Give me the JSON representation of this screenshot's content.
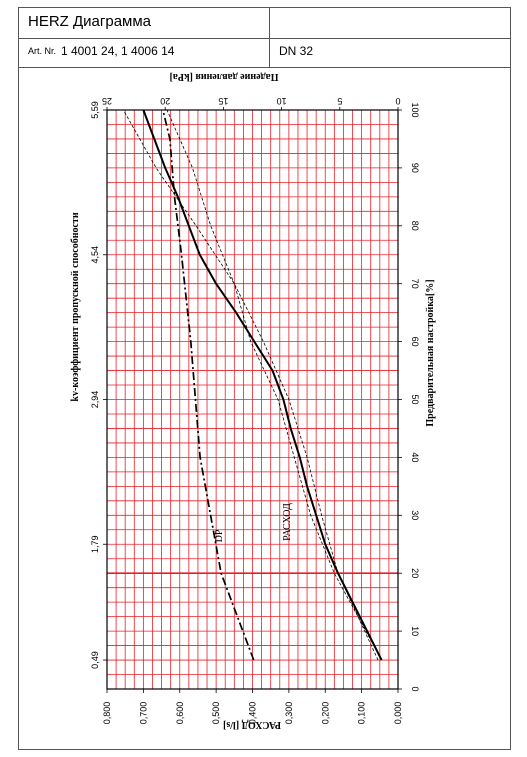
{
  "header": {
    "title": "HERZ Диаграмма",
    "art_label": "Art. Nr.",
    "art_value": "1 4001 24, 1 4006 14",
    "dn": "DN 32"
  },
  "chart_data": {
    "type": "line",
    "orientation": "rotated-90-clockwise",
    "left_axis": {
      "label": "РАСХОД [l/s]",
      "range": [
        0,
        0.8
      ],
      "ticks": [
        "0,000",
        "0,100",
        "0,200",
        "0,300",
        "0,400",
        "0,500",
        "0,600",
        "0,700",
        "0,800"
      ]
    },
    "top_axis": {
      "label": "Падение давления [kPa]",
      "range": [
        0,
        25
      ],
      "ticks": [
        "0",
        "5",
        "10",
        "15",
        "20",
        "25"
      ]
    },
    "right_axis": {
      "label": "Предварительная настройка[%]",
      "range": [
        0,
        100
      ],
      "ticks": [
        "0",
        "10",
        "20",
        "30",
        "40",
        "50",
        "60",
        "70",
        "80",
        "90",
        "100"
      ]
    },
    "kv_axis": {
      "label": "kv-коэффициент  пропускной способности",
      "ticks": [
        {
          "setting": 5,
          "label": "0,49"
        },
        {
          "setting": 25,
          "label": "1,79"
        },
        {
          "setting": 50,
          "label": "2,94"
        },
        {
          "setting": 75,
          "label": "4,54"
        },
        {
          "setting": 100,
          "label": "5,59"
        }
      ]
    },
    "grid": true,
    "grid_color": "#e8202a",
    "series": [
      {
        "name": "РАСХОД",
        "axis": "flow",
        "style": "solid",
        "points": [
          [
            5,
            0.045
          ],
          [
            10,
            0.085
          ],
          [
            15,
            0.125
          ],
          [
            20,
            0.165
          ],
          [
            25,
            0.2
          ],
          [
            30,
            0.225
          ],
          [
            35,
            0.25
          ],
          [
            40,
            0.27
          ],
          [
            45,
            0.295
          ],
          [
            50,
            0.315
          ],
          [
            55,
            0.345
          ],
          [
            60,
            0.395
          ],
          [
            65,
            0.445
          ],
          [
            70,
            0.5
          ],
          [
            75,
            0.545
          ],
          [
            80,
            0.575
          ],
          [
            85,
            0.605
          ],
          [
            90,
            0.64
          ],
          [
            95,
            0.67
          ],
          [
            100,
            0.7
          ]
        ]
      },
      {
        "name": "",
        "axis": "flow",
        "style": "thin-dashed",
        "points": [
          [
            5,
            0.045
          ],
          [
            20,
            0.175
          ],
          [
            30,
            0.24
          ],
          [
            40,
            0.285
          ],
          [
            50,
            0.33
          ],
          [
            60,
            0.405
          ],
          [
            70,
            0.45
          ],
          [
            80,
            0.515
          ],
          [
            90,
            0.565
          ],
          [
            100,
            0.635
          ]
        ]
      },
      {
        "name": "",
        "axis": "flow",
        "style": "thin-dashed",
        "points": [
          [
            5,
            0.055
          ],
          [
            20,
            0.165
          ],
          [
            30,
            0.21
          ],
          [
            40,
            0.25
          ],
          [
            50,
            0.3
          ],
          [
            60,
            0.37
          ],
          [
            70,
            0.45
          ],
          [
            80,
            0.555
          ],
          [
            90,
            0.665
          ],
          [
            100,
            0.755
          ]
        ]
      },
      {
        "name": "DP",
        "axis": "pressure",
        "style": "dash-dot",
        "points": [
          [
            5,
            12.4
          ],
          [
            20,
            15.2
          ],
          [
            40,
            17.0
          ],
          [
            60,
            17.8
          ],
          [
            75,
            18.6
          ],
          [
            85,
            19.2
          ],
          [
            95,
            19.6
          ],
          [
            100,
            20.2
          ]
        ]
      }
    ],
    "annotations": [
      "DP",
      "РАСХОД"
    ]
  }
}
